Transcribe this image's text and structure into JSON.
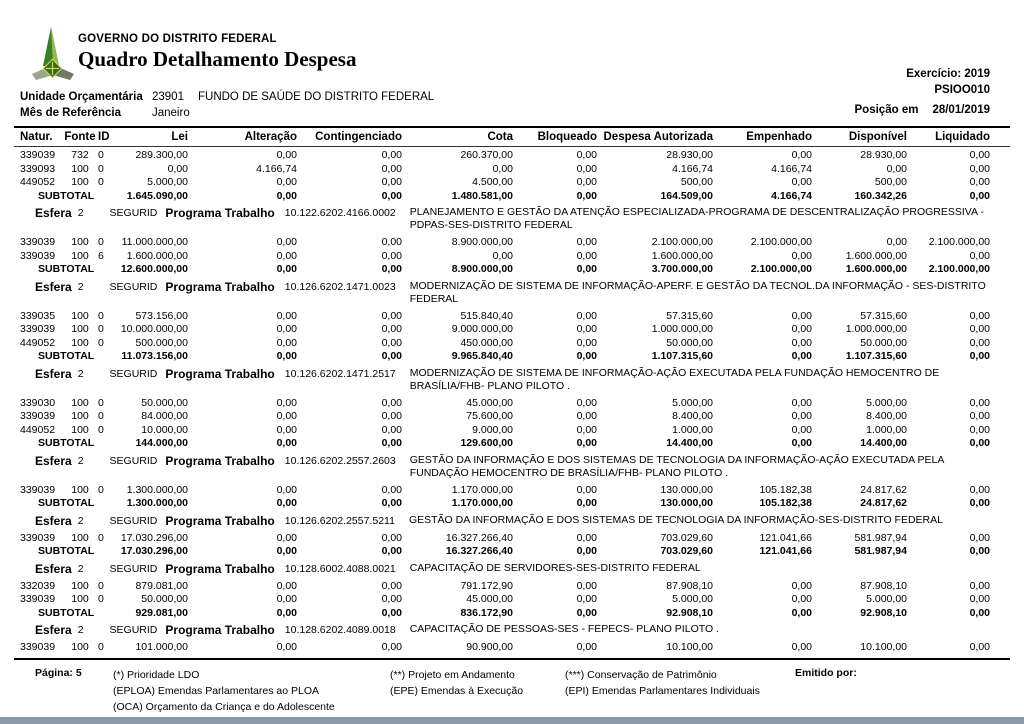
{
  "header": {
    "government": "GOVERNO DO DISTRITO FEDERAL",
    "title": "Quadro Detalhamento Despesa",
    "exercicio": "Exercício: 2019",
    "report_code": "PSIOO010",
    "posicao_label": "Posição em",
    "posicao_value": "28/01/2019",
    "unidade_label": "Unidade Orçamentária",
    "unidade_code": "23901",
    "unidade_name": "FUNDO DE SAÚDE DO DISTRITO FEDERAL",
    "mes_label": "Mês de Referência",
    "mes_value": "Janeiro",
    "logo_icon": "distrito-federal-coat-of-arms"
  },
  "table": {
    "columns": [
      "Natur.",
      "Fonte",
      "ID",
      "Lei",
      "Alteração",
      "Contingenciado",
      "Cota",
      "Bloqueado",
      "Despesa Autorizada",
      "Empenhado",
      "Disponível",
      "Liquidado"
    ],
    "subtotal_label": "SUBTOTAL",
    "esfera_label": "Esfera",
    "programa_label": "Programa Trabalho",
    "sections": [
      {
        "esfera": null,
        "rows": [
          [
            "339039",
            "732",
            "0",
            "289.300,00",
            "0,00",
            "0,00",
            "260.370,00",
            "0,00",
            "28.930,00",
            "0,00",
            "28.930,00",
            "0,00"
          ],
          [
            "339093",
            "100",
            "0",
            "0,00",
            "4.166,74",
            "0,00",
            "0,00",
            "0,00",
            "4.166,74",
            "4.166,74",
            "0,00",
            "0,00"
          ],
          [
            "449052",
            "100",
            "0",
            "5.000,00",
            "0,00",
            "0,00",
            "4.500,00",
            "0,00",
            "500,00",
            "0,00",
            "500,00",
            "0,00"
          ]
        ],
        "subtotal": [
          "1.645.090,00",
          "0,00",
          "0,00",
          "1.480.581,00",
          "0,00",
          "164.509,00",
          "4.166,74",
          "160.342,26",
          "0,00"
        ]
      },
      {
        "esfera": {
          "value": "2",
          "regime": "SEGURID",
          "code": "10.122.6202.4166.0002",
          "desc": "PLANEJAMENTO E GESTÃO DA ATENÇÃO ESPECIALIZADA-PROGRAMA DE DESCENTRALIZAÇÃO PROGRESSIVA - PDPAS-SES-DISTRITO FEDERAL"
        },
        "rows": [
          [
            "339039",
            "100",
            "0",
            "11.000.000,00",
            "0,00",
            "0,00",
            "8.900.000,00",
            "0,00",
            "2.100.000,00",
            "2.100.000,00",
            "0,00",
            "2.100.000,00"
          ],
          [
            "339039",
            "100",
            "6",
            "1.600.000,00",
            "0,00",
            "0,00",
            "0,00",
            "0,00",
            "1.600.000,00",
            "0,00",
            "1.600.000,00",
            "0,00"
          ]
        ],
        "subtotal": [
          "12.600.000,00",
          "0,00",
          "0,00",
          "8.900.000,00",
          "0,00",
          "3.700.000,00",
          "2.100.000,00",
          "1.600.000,00",
          "2.100.000,00"
        ]
      },
      {
        "esfera": {
          "value": "2",
          "regime": "SEGURID",
          "code": "10.126.6202.1471.0023",
          "desc": "MODERNIZAÇÃO DE SISTEMA DE INFORMAÇÃO-APERF. E GESTÃO DA TECNOL.DA INFORMAÇÃO - SES-DISTRITO FEDERAL"
        },
        "rows": [
          [
            "339035",
            "100",
            "0",
            "573.156,00",
            "0,00",
            "0,00",
            "515.840,40",
            "0,00",
            "57.315,60",
            "0,00",
            "57.315,60",
            "0,00"
          ],
          [
            "339039",
            "100",
            "0",
            "10.000.000,00",
            "0,00",
            "0,00",
            "9.000.000,00",
            "0,00",
            "1.000.000,00",
            "0,00",
            "1.000.000,00",
            "0,00"
          ],
          [
            "449052",
            "100",
            "0",
            "500.000,00",
            "0,00",
            "0,00",
            "450.000,00",
            "0,00",
            "50.000,00",
            "0,00",
            "50.000,00",
            "0,00"
          ]
        ],
        "subtotal": [
          "11.073.156,00",
          "0,00",
          "0,00",
          "9.965.840,40",
          "0,00",
          "1.107.315,60",
          "0,00",
          "1.107.315,60",
          "0,00"
        ]
      },
      {
        "esfera": {
          "value": "2",
          "regime": "SEGURID",
          "code": "10.126.6202.1471.2517",
          "desc": "MODERNIZAÇÃO DE SISTEMA DE INFORMAÇÃO-AÇÃO EXECUTADA PELA FUNDAÇÃO HEMOCENTRO DE BRASÍLIA/FHB- PLANO PILOTO ."
        },
        "rows": [
          [
            "339030",
            "100",
            "0",
            "50.000,00",
            "0,00",
            "0,00",
            "45.000,00",
            "0,00",
            "5.000,00",
            "0,00",
            "5.000,00",
            "0,00"
          ],
          [
            "339039",
            "100",
            "0",
            "84.000,00",
            "0,00",
            "0,00",
            "75.600,00",
            "0,00",
            "8.400,00",
            "0,00",
            "8.400,00",
            "0,00"
          ],
          [
            "449052",
            "100",
            "0",
            "10.000,00",
            "0,00",
            "0,00",
            "9.000,00",
            "0,00",
            "1.000,00",
            "0,00",
            "1.000,00",
            "0,00"
          ]
        ],
        "subtotal": [
          "144.000,00",
          "0,00",
          "0,00",
          "129.600,00",
          "0,00",
          "14.400,00",
          "0,00",
          "14.400,00",
          "0,00"
        ]
      },
      {
        "esfera": {
          "value": "2",
          "regime": "SEGURID",
          "code": "10.126.6202.2557.2603",
          "desc": "GESTÃO DA INFORMAÇÃO  E DOS SISTEMAS DE TECNOLOGIA DA INFORMAÇÃO-AÇÃO EXECUTADA PELA FUNDAÇÃO HEMOCENTRO DE BRASÍLIA/FHB- PLANO PILOTO ."
        },
        "rows": [
          [
            "339039",
            "100",
            "0",
            "1.300.000,00",
            "0,00",
            "0,00",
            "1.170.000,00",
            "0,00",
            "130.000,00",
            "105.182,38",
            "24.817,62",
            "0,00"
          ]
        ],
        "subtotal": [
          "1.300.000,00",
          "0,00",
          "0,00",
          "1.170.000,00",
          "0,00",
          "130.000,00",
          "105.182,38",
          "24.817,62",
          "0,00"
        ]
      },
      {
        "esfera": {
          "value": "2",
          "regime": "SEGURID",
          "code": "10.126.6202.2557.5211",
          "desc": "GESTÃO DA INFORMAÇÃO  E DOS SISTEMAS DE TECNOLOGIA DA INFORMAÇÃO-SES-DISTRITO FEDERAL"
        },
        "rows": [
          [
            "339039",
            "100",
            "0",
            "17.030.296,00",
            "0,00",
            "0,00",
            "16.327.266,40",
            "0,00",
            "703.029,60",
            "121.041,66",
            "581.987,94",
            "0,00"
          ]
        ],
        "subtotal": [
          "17.030.296,00",
          "0,00",
          "0,00",
          "16.327.266,40",
          "0,00",
          "703.029,60",
          "121.041,66",
          "581.987,94",
          "0,00"
        ]
      },
      {
        "esfera": {
          "value": "2",
          "regime": "SEGURID",
          "code": "10.128.6002.4088.0021",
          "desc": "CAPACITAÇÃO DE SERVIDORES-SES-DISTRITO FEDERAL"
        },
        "rows": [
          [
            "332039",
            "100",
            "0",
            "879.081,00",
            "0,00",
            "0,00",
            "791.172,90",
            "0,00",
            "87.908,10",
            "0,00",
            "87.908,10",
            "0,00"
          ],
          [
            "339039",
            "100",
            "0",
            "50.000,00",
            "0,00",
            "0,00",
            "45.000,00",
            "0,00",
            "5.000,00",
            "0,00",
            "5.000,00",
            "0,00"
          ]
        ],
        "subtotal": [
          "929.081,00",
          "0,00",
          "0,00",
          "836.172,90",
          "0,00",
          "92.908,10",
          "0,00",
          "92.908,10",
          "0,00"
        ]
      },
      {
        "esfera": {
          "value": "2",
          "regime": "SEGURID",
          "code": "10.128.6202.4089.0018",
          "desc": "CAPACITAÇÃO DE PESSOAS-SES - FEPECS- PLANO PILOTO ."
        },
        "rows": [
          [
            "339039",
            "100",
            "0",
            "101.000,00",
            "0,00",
            "0,00",
            "90.900,00",
            "0,00",
            "10.100,00",
            "0,00",
            "10.100,00",
            "0,00"
          ]
        ],
        "subtotal": null
      }
    ]
  },
  "footer": {
    "pagina_label": "Página:",
    "pagina_value": "5",
    "legend": [
      [
        "(*)  Prioridade LDO",
        "(EPLOA)  Emendas Parlamentares ao PLOA",
        "(OCA)  Orçamento da Criança e do Adolescente"
      ],
      [
        "(**)  Projeto em Andamento",
        "(EPE) Emendas à Execução"
      ],
      [
        "(***)  Conservação de Patrimônio",
        "(EPI) Emendas Parlamentares Individuais"
      ]
    ],
    "emitido_label": "Emitido por:"
  }
}
